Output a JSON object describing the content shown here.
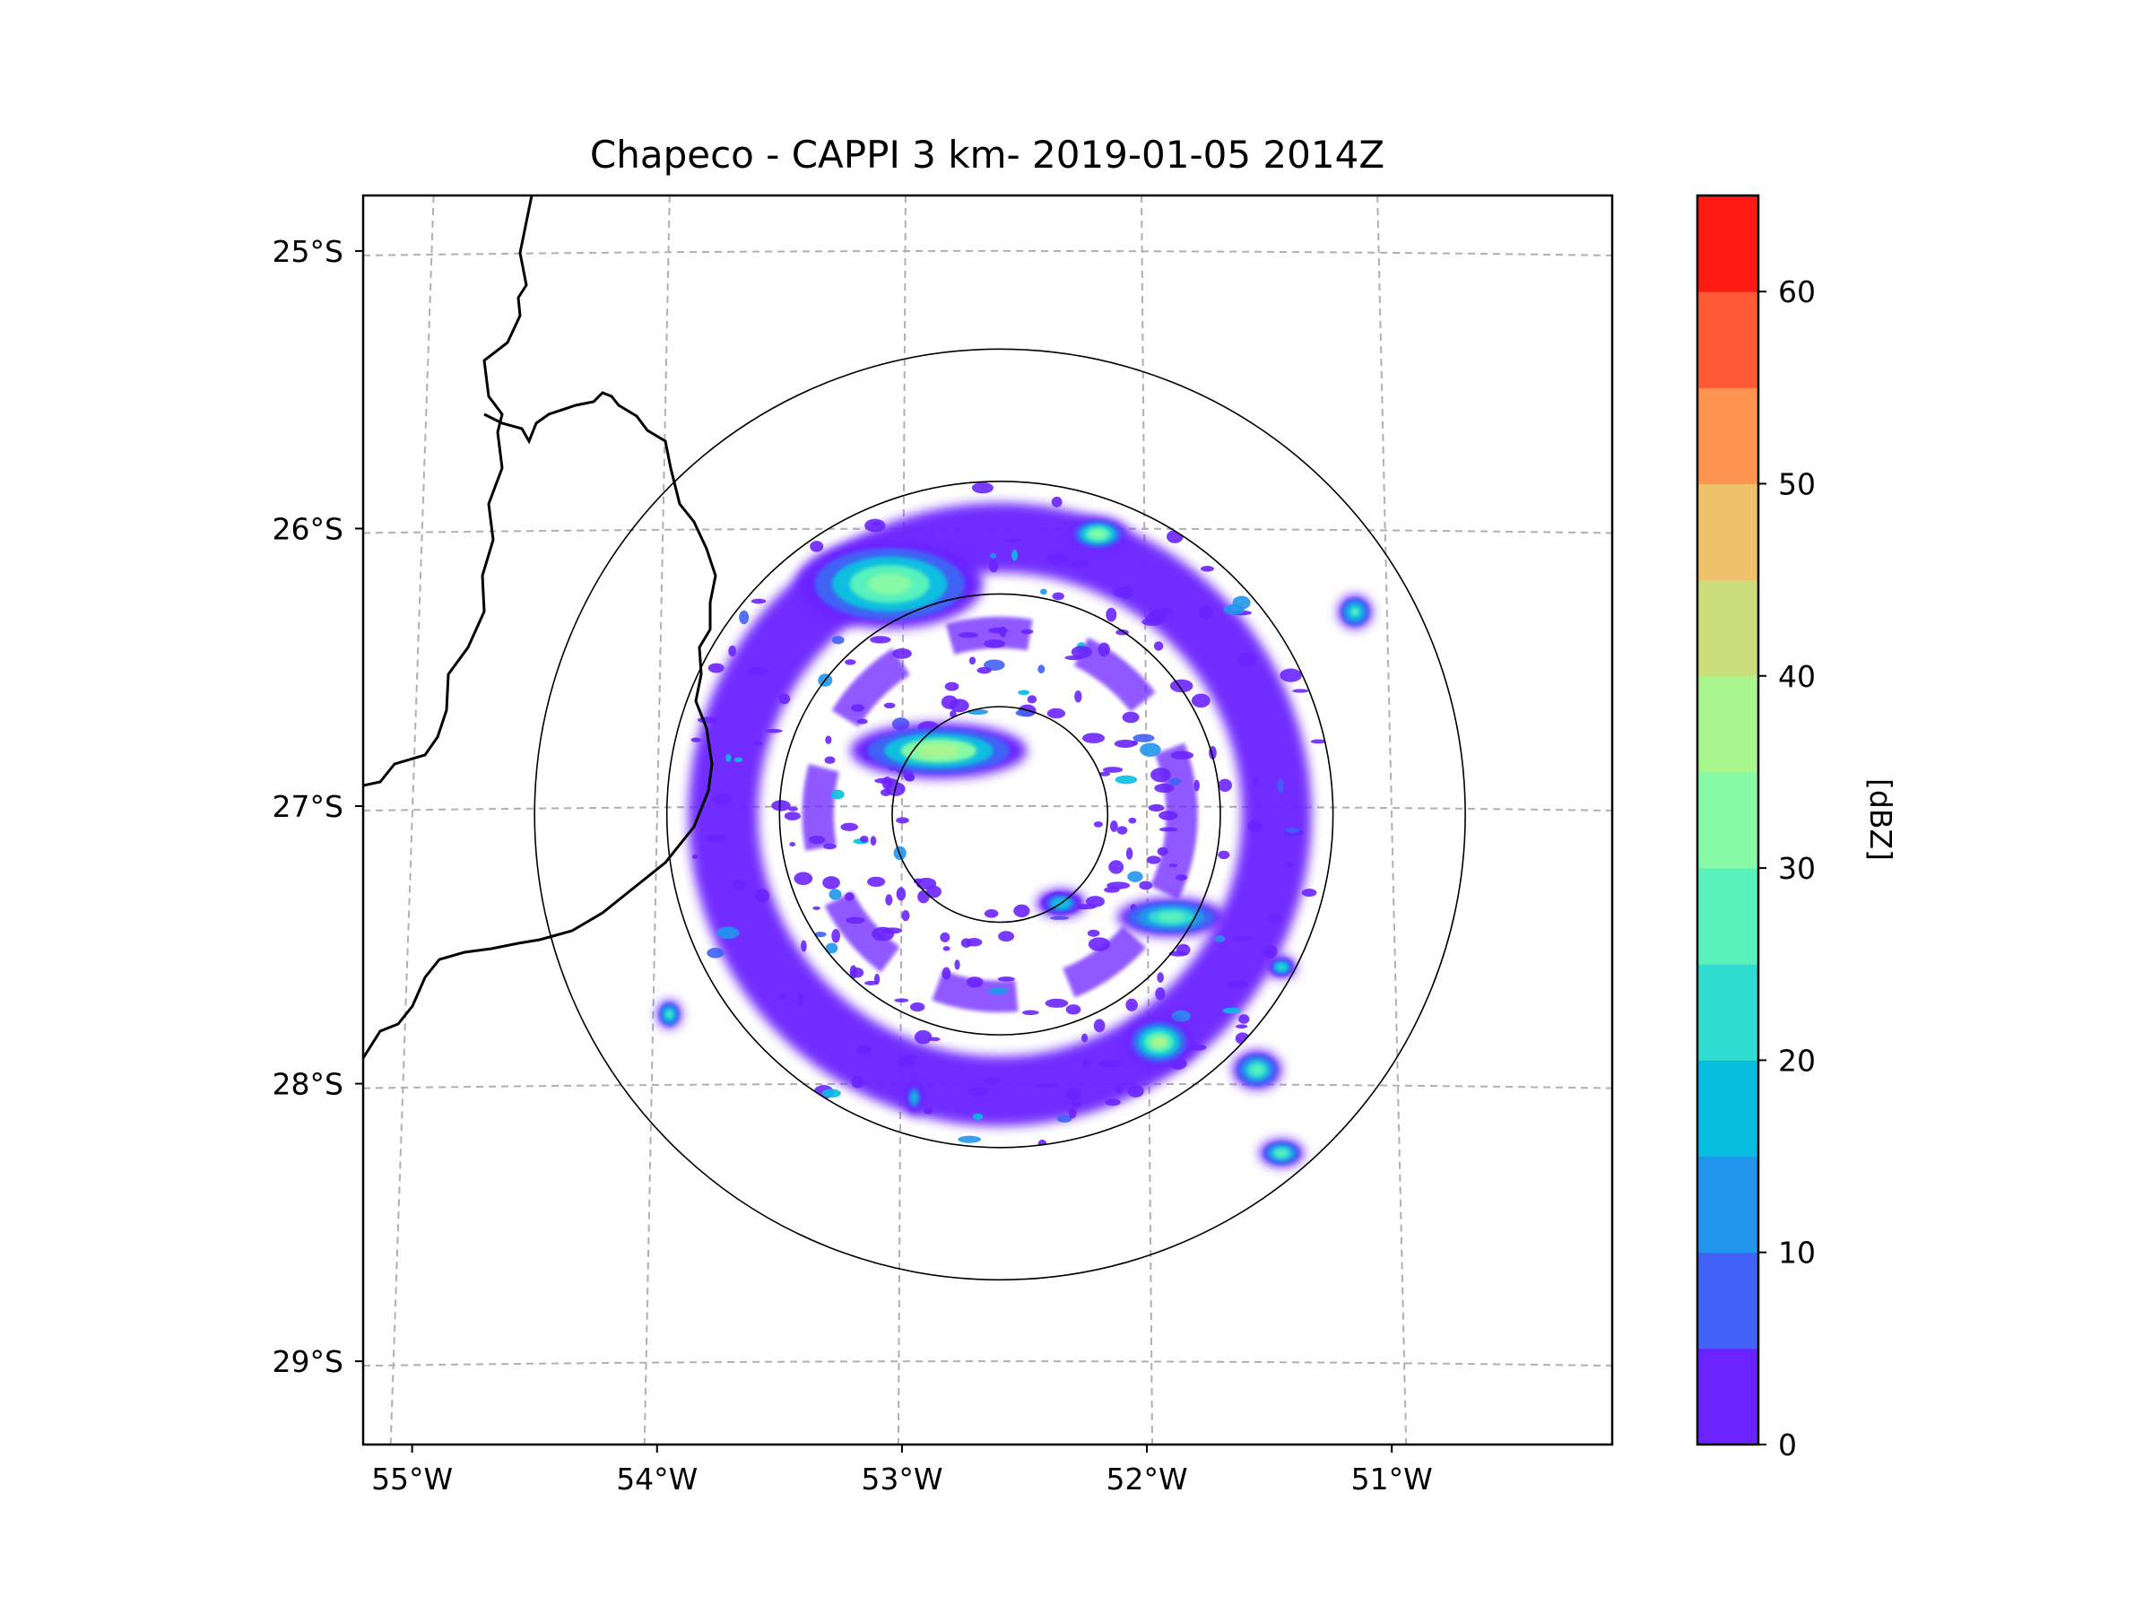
{
  "chart_data": {
    "type": "heatmap",
    "title": "Chapeco - CAPPI 3 km- 2019-01-05 2014Z",
    "x_ticks": [
      {
        "value": -55,
        "label": "55°W"
      },
      {
        "value": -54,
        "label": "54°W"
      },
      {
        "value": -53,
        "label": "53°W"
      },
      {
        "value": -52,
        "label": "52°W"
      },
      {
        "value": -51,
        "label": "51°W"
      }
    ],
    "y_ticks": [
      {
        "value": -25,
        "label": "25°S"
      },
      {
        "value": -26,
        "label": "26°S"
      },
      {
        "value": -27,
        "label": "27°S"
      },
      {
        "value": -28,
        "label": "28°S"
      },
      {
        "value": -29,
        "label": "29°S"
      }
    ],
    "xlim": [
      -55.2,
      -50.1
    ],
    "ylim": [
      -29.3,
      -24.8
    ],
    "grid": true,
    "radar_center": {
      "lon": -52.6,
      "lat": -27.03
    },
    "range_rings_deg": [
      0.44,
      0.9,
      1.36,
      1.9
    ],
    "colorbar": {
      "label": "[dBZ]",
      "range": [
        0,
        65
      ],
      "tick_values": [
        0,
        10,
        20,
        30,
        40,
        50,
        60
      ],
      "tick_labels": [
        "0",
        "10",
        "20",
        "30",
        "40",
        "50",
        "60"
      ],
      "levels": [
        0,
        5,
        10,
        15,
        20,
        25,
        30,
        35,
        40,
        45,
        50,
        55,
        60,
        65
      ],
      "colors": [
        "#6a23ff",
        "#4062f5",
        "#2196ec",
        "#08bee0",
        "#30dcd0",
        "#59f2bc",
        "#86faa6",
        "#a9f58e",
        "#cbdd7a",
        "#efc16a",
        "#ff9451",
        "#ff5a34",
        "#ff1b14"
      ]
    },
    "echo_cells": [
      {
        "lon": -53.05,
        "lat": -26.2,
        "rlon": 0.38,
        "rlat": 0.16,
        "dbz": 38
      },
      {
        "lon": -52.85,
        "lat": -26.8,
        "rlon": 0.36,
        "rlat": 0.1,
        "dbz": 44
      },
      {
        "lon": -52.2,
        "lat": -26.02,
        "rlon": 0.12,
        "rlat": 0.06,
        "dbz": 36
      },
      {
        "lon": -51.9,
        "lat": -27.4,
        "rlon": 0.22,
        "rlat": 0.07,
        "dbz": 30
      },
      {
        "lon": -51.95,
        "lat": -27.85,
        "rlon": 0.14,
        "rlat": 0.09,
        "dbz": 40
      },
      {
        "lon": -51.55,
        "lat": -27.95,
        "rlon": 0.1,
        "rlat": 0.07,
        "dbz": 32
      },
      {
        "lon": -51.45,
        "lat": -28.25,
        "rlon": 0.09,
        "rlat": 0.05,
        "dbz": 30
      },
      {
        "lon": -51.15,
        "lat": -26.3,
        "rlon": 0.07,
        "rlat": 0.06,
        "dbz": 28
      },
      {
        "lon": -52.35,
        "lat": -27.35,
        "rlon": 0.1,
        "rlat": 0.05,
        "dbz": 22
      },
      {
        "lon": -53.95,
        "lat": -27.75,
        "rlon": 0.05,
        "rlat": 0.05,
        "dbz": 28
      },
      {
        "lon": -51.45,
        "lat": -27.58,
        "rlon": 0.06,
        "rlat": 0.04,
        "dbz": 24
      },
      {
        "lon": -52.95,
        "lat": -28.05,
        "rlon": 0.04,
        "rlat": 0.06,
        "dbz": 18
      }
    ]
  }
}
